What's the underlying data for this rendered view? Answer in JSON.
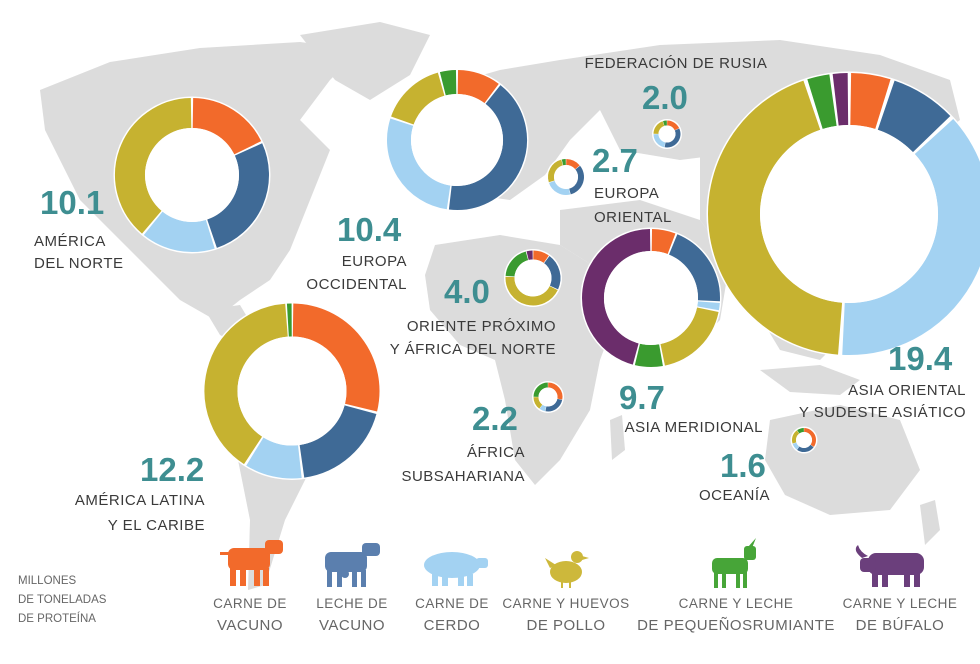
{
  "unit_note": [
    "MILLONES",
    "DE TONELADAS",
    "DE PROTEÍNA"
  ],
  "colors": {
    "map": "#dcdcdc",
    "value_text": "#3e8e91",
    "donut_hole": "#ffffff"
  },
  "legend": [
    {
      "line1": "CARNE DE",
      "line2": "VACUNO",
      "color": "#f26a2b",
      "icon": "cow-icon"
    },
    {
      "line1": "LECHE DE",
      "line2": "VACUNO",
      "color": "#5b7fae",
      "icon": "dairy-cow-icon"
    },
    {
      "line1": "CARNE DE",
      "line2": "CERDO",
      "color": "#a3d2f2",
      "icon": "pig-icon"
    },
    {
      "line1": "CARNE Y HUEVOS",
      "line2": "DE POLLO",
      "color": "#cdb83b",
      "icon": "chicken-icon"
    },
    {
      "line1": "CARNE Y LECHE",
      "line2": "DE PEQUEÑOSRUMIANTE",
      "color": "#47a538",
      "icon": "goat-icon"
    },
    {
      "line1": "CARNE Y LECHE",
      "line2": "DE BÚFALO",
      "color": "#6b3f7c",
      "icon": "buffalo-icon"
    }
  ],
  "chart_data": {
    "type": "pie",
    "categories": [
      "Carne de vacuno",
      "Leche de vacuno",
      "Carne de cerdo",
      "Carne y huevos de pollo",
      "Carne y leche de pequeños rumiantes",
      "Carne y leche de búfalo"
    ],
    "series_colors": [
      "#f26a2b",
      "#3f6a96",
      "#a3d2f2",
      "#c6b230",
      "#3a9b2f",
      "#6b2d6b"
    ],
    "regions": [
      {
        "key": "na",
        "value": "10.1",
        "label": [
          "AMÉRICA",
          "DEL NORTE"
        ],
        "shares": [
          0.18,
          0.27,
          0.16,
          0.39,
          0.0,
          0.0
        ]
      },
      {
        "key": "we",
        "value": "10.4",
        "label": [
          "EUROPA",
          "OCCIDENTAL"
        ],
        "shares": [
          0.1,
          0.4,
          0.27,
          0.15,
          0.04,
          0.0
        ]
      },
      {
        "key": "ru",
        "value": "2.0",
        "label": [
          "FEDERACIÓN DE RUSIA"
        ],
        "shares": [
          0.18,
          0.35,
          0.22,
          0.2,
          0.05,
          0.0
        ]
      },
      {
        "key": "ee",
        "value": "2.7",
        "label": [
          "EUROPA",
          "ORIENTAL"
        ],
        "shares": [
          0.14,
          0.32,
          0.24,
          0.26,
          0.04,
          0.0
        ]
      },
      {
        "key": "me",
        "value": "4.0",
        "label": [
          "ORIENTE PRÓXIMO",
          "Y ÁFRICA DEL NORTE"
        ],
        "shares": [
          0.1,
          0.22,
          0.0,
          0.44,
          0.2,
          0.04
        ]
      },
      {
        "key": "la",
        "value": "12.2",
        "label": [
          "AMÉRICA LATINA",
          "Y EL CARIBE"
        ],
        "shares": [
          0.29,
          0.19,
          0.11,
          0.4,
          0.01,
          0.0
        ]
      },
      {
        "key": "sa",
        "value": "9.7",
        "label": [
          "ASIA MERIDIONAL"
        ],
        "shares": [
          0.06,
          0.2,
          0.02,
          0.19,
          0.07,
          0.46
        ]
      },
      {
        "key": "af",
        "value": "2.2",
        "label": [
          "ÁFRICA",
          "SUBSAHARIANA"
        ],
        "shares": [
          0.28,
          0.25,
          0.07,
          0.15,
          0.25,
          0.0
        ]
      },
      {
        "key": "ea",
        "value": "19.4",
        "label": [
          "ASIA ORIENTAL",
          "Y SUDESTE ASIÁTICO"
        ],
        "shares": [
          0.05,
          0.08,
          0.38,
          0.44,
          0.03,
          0.02
        ]
      },
      {
        "key": "oc",
        "value": "1.6",
        "label": [
          "OCEANÍA"
        ],
        "shares": [
          0.35,
          0.25,
          0.1,
          0.2,
          0.1,
          0.0
        ]
      }
    ]
  }
}
